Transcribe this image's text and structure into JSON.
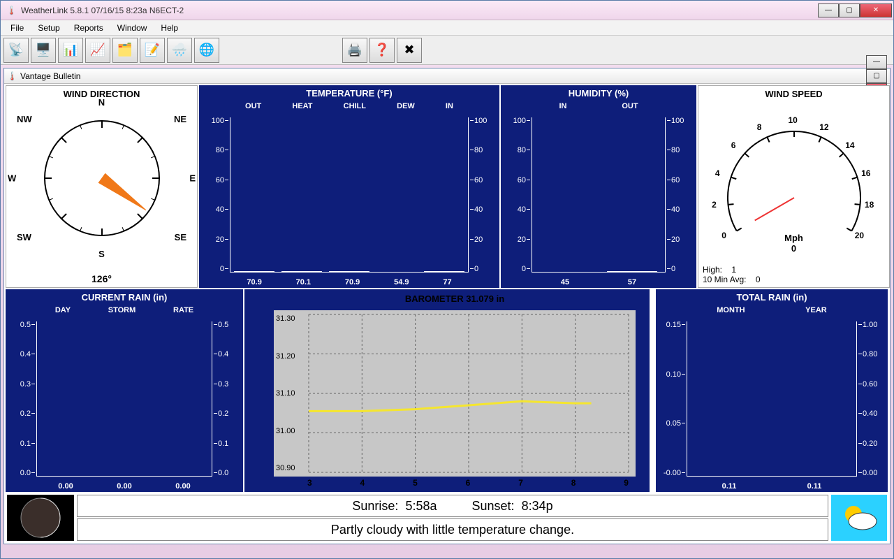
{
  "window": {
    "title": "WeatherLink 5.8.1  07/16/15   8:23a  N6ECT-2",
    "menus": [
      "File",
      "Setup",
      "Reports",
      "Window",
      "Help"
    ],
    "child_title": "Vantage Bulletin"
  },
  "toolbar_icons": [
    "📡",
    "🖥️",
    "📊",
    "📈",
    "🗂️",
    "📝",
    "🌧️",
    "🌐"
  ],
  "toolbar_right": [
    "🖨️",
    "❓",
    "✖"
  ],
  "wind_dir": {
    "title": "WIND DIRECTION",
    "degrees": "126°",
    "heading_deg": 126,
    "labels": {
      "N": "N",
      "NE": "NE",
      "E": "E",
      "SE": "SE",
      "S": "S",
      "SW": "SW",
      "W": "W",
      "NW": "NW"
    }
  },
  "temperature": {
    "title": "TEMPERATURE  (°F)",
    "ymin": 0,
    "ymax": 100,
    "ytick": 20,
    "headers": [
      "OUT",
      "HEAT",
      "CHILL",
      "DEW",
      "IN"
    ],
    "values": [
      70.9,
      70.1,
      70.9,
      54.9,
      77.0
    ],
    "marks": [
      59,
      59,
      60,
      null,
      82
    ],
    "colors": [
      "#f5a700",
      "#f28a1c",
      "#6a44c7",
      "#2dd0a8",
      "#f7a97b"
    ]
  },
  "humidity": {
    "title": "HUMIDITY  (%)",
    "ymin": 0,
    "ymax": 100,
    "ytick": 20,
    "headers": [
      "IN",
      "OUT"
    ],
    "values": [
      45,
      57
    ],
    "marks": [
      null,
      78
    ],
    "colors": [
      "#0a7a1e",
      "#1c9632"
    ]
  },
  "wind_speed": {
    "title": "WIND SPEED",
    "unit": "Mph",
    "value": "0",
    "high_label": "High:",
    "high": "1",
    "avg_label": "10 Min Avg:",
    "avg": "0",
    "scale": [
      0,
      2,
      4,
      6,
      8,
      10,
      12,
      14,
      16,
      18,
      20
    ]
  },
  "current_rain": {
    "title": "CURRENT RAIN  (in)",
    "ymin": 0,
    "ymax": 0.5,
    "ytick": 0.1,
    "headers": [
      "DAY",
      "STORM",
      "RATE"
    ],
    "values": [
      0.0,
      0.0,
      0.0
    ],
    "colors": [
      "#2a6fd6",
      "#2a6fd6",
      "#2a6fd6"
    ],
    "value_labels": [
      "0.00",
      "0.00",
      "0.00"
    ]
  },
  "barometer": {
    "title": "BAROMETER 31.079 in",
    "ymin": 30.9,
    "ymax": 31.3,
    "ytick": 0.1,
    "y_labels": [
      "31.30",
      "31.20",
      "31.10",
      "31.00",
      "30.90"
    ],
    "xmin": 3,
    "xmax": 9,
    "x_labels": [
      "3",
      "4",
      "5",
      "6",
      "7",
      "8",
      "9"
    ],
    "series_color": "#f5e62e",
    "series": [
      [
        3,
        31.055
      ],
      [
        4,
        31.055
      ],
      [
        5,
        31.06
      ],
      [
        6,
        31.07
      ],
      [
        7,
        31.08
      ],
      [
        8,
        31.075
      ],
      [
        8.3,
        31.075
      ]
    ]
  },
  "total_rain": {
    "title": "TOTAL RAIN  (in)",
    "left_ymin": 0,
    "left_ymax": 0.15,
    "left_tick": 0.05,
    "right_ymin": 0,
    "right_ymax": 1.0,
    "right_tick": 0.2,
    "headers": [
      "MONTH",
      "YEAR"
    ],
    "values": [
      0.11,
      0.11
    ],
    "heights_pct": [
      73,
      12
    ],
    "colors": [
      "#2a6fd6",
      "#3d82e6"
    ]
  },
  "footer": {
    "sunrise_label": "Sunrise:",
    "sunrise": "5:58a",
    "sunset_label": "Sunset:",
    "sunset": "8:34p",
    "forecast": "Partly cloudy with little temperature change."
  },
  "colors": {
    "navy": "#0e1e7a",
    "needle": "#f07818"
  }
}
